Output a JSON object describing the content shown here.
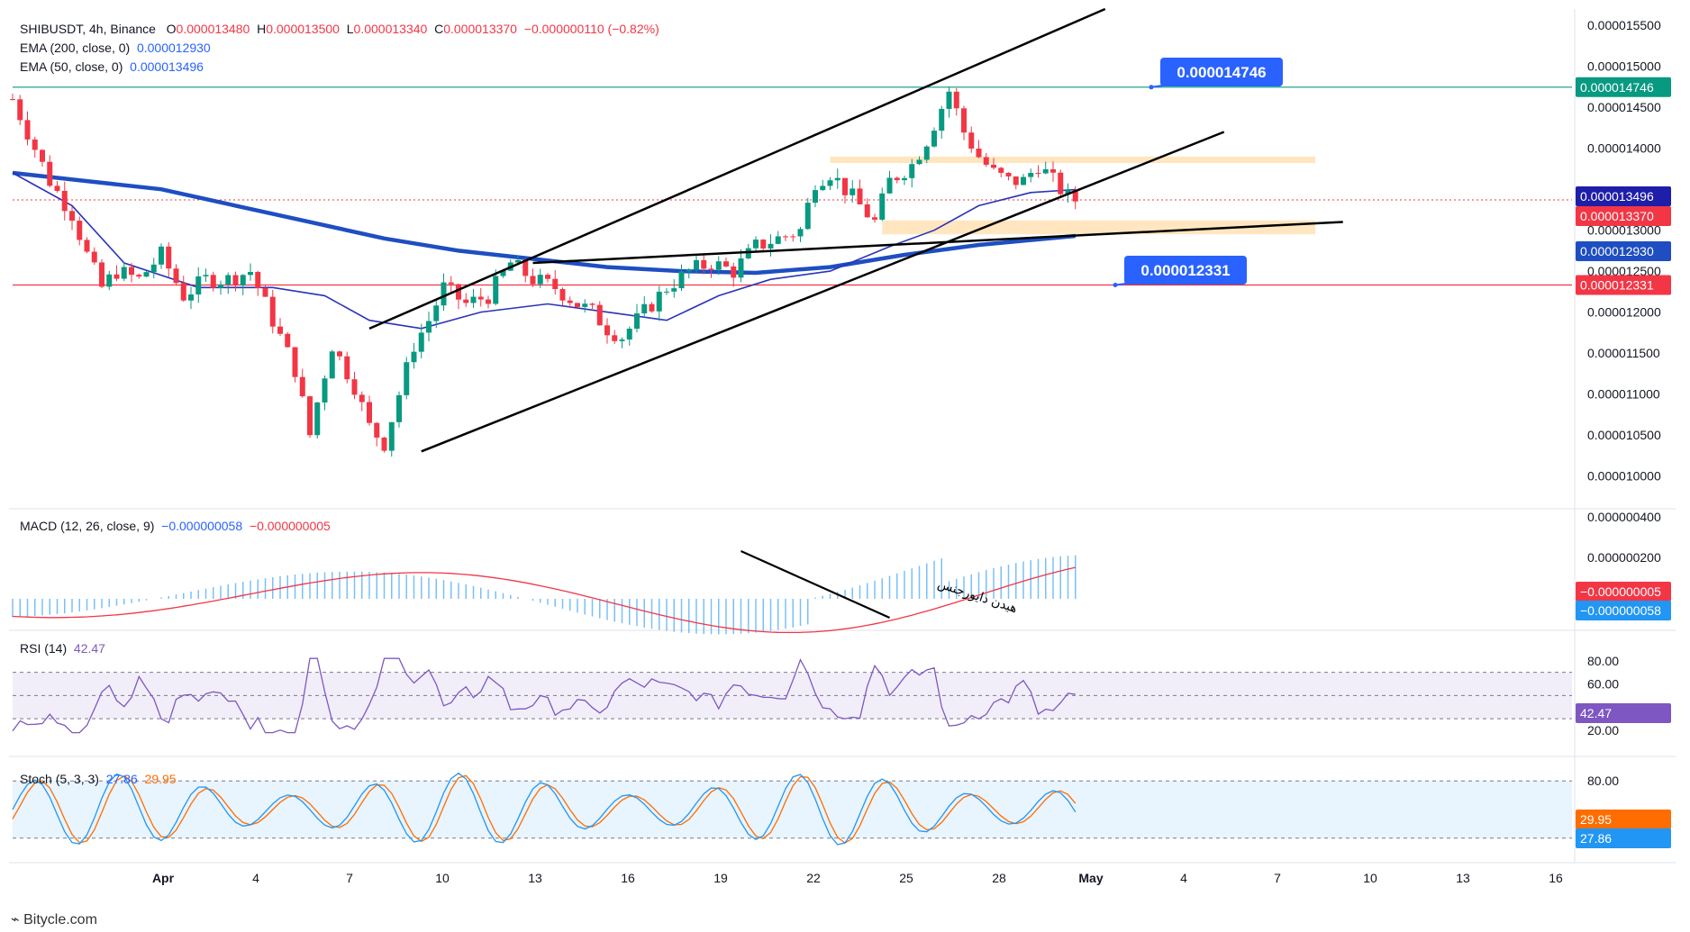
{
  "header": {
    "symbol": "SHIBUSDT, 4h, Binance",
    "o_label": "O",
    "o": "0.000013480",
    "h_label": "H",
    "h": "0.000013500",
    "l_label": "L",
    "l": "0.000013340",
    "c_label": "C",
    "c": "0.000013370",
    "change": "−0.000000110 (−0.82%)"
  },
  "ema200": {
    "label": "EMA (200, close, 0)",
    "value": "0.000012930"
  },
  "ema50": {
    "label": "EMA (50, close, 0)",
    "value": "0.000013496"
  },
  "macd": {
    "label": "MACD (12, 26, close, 9)",
    "v1": "−0.000000058",
    "v2": "−0.000000005",
    "annotation": "هیدن دایورجنس"
  },
  "rsi": {
    "label": "RSI (14)",
    "value": "42.47"
  },
  "stoch": {
    "label": "Stoch (5, 3, 3)",
    "k": "27.86",
    "d": "29.95"
  },
  "watermark": "Bitycle.com",
  "colors": {
    "blue": "#2962ff",
    "red": "#f23645",
    "green": "#089981",
    "purple": "#7e57c2",
    "orange": "#ff6d00",
    "ema200": "#1e4ec2",
    "ema50": "#2a33b8"
  },
  "chart_data": {
    "type": "candlestick",
    "title": "SHIBUSDT, 4h, Binance",
    "price_axis": {
      "ticks": [
        "0.000015500",
        "0.000015000",
        "0.000014500",
        "0.000014000",
        "0.000013000",
        "0.000012500",
        "0.000012000",
        "0.000011500",
        "0.000011000",
        "0.000010500",
        "0.000010000"
      ],
      "range": [
        9.6e-06,
        1.57e-05
      ]
    },
    "x_axis": {
      "ticks": [
        "Apr",
        "4",
        "7",
        "10",
        "13",
        "16",
        "19",
        "22",
        "25",
        "28",
        "May",
        "4",
        "7",
        "10",
        "13",
        "16"
      ]
    },
    "price_badges": [
      {
        "value": "0.000014746",
        "color": "#089981"
      },
      {
        "value": "0.000013496",
        "color": "#1e1ea8"
      },
      {
        "value": "0.000013370",
        "color": "#f23645"
      },
      {
        "value": "0.000012930",
        "color": "#1e4ec2"
      },
      {
        "value": "0.000012331",
        "color": "#f23645"
      }
    ],
    "callouts": [
      "0.000014746",
      "0.000012331"
    ],
    "horizontal_levels": [
      {
        "value": 1.4746e-05,
        "color": "green"
      },
      {
        "value": 1.2331e-05,
        "color": "red"
      }
    ],
    "support_zones": [
      {
        "from": 1.38e-05,
        "to": 1.39e-05
      },
      {
        "from": 1.29e-05,
        "to": 1.31e-05
      }
    ],
    "price_path": [
      [
        0,
        14.6
      ],
      [
        2,
        14.2
      ],
      [
        5,
        13.6
      ],
      [
        8,
        13.2
      ],
      [
        10,
        12.7
      ],
      [
        12,
        12.3
      ],
      [
        14,
        12.5
      ],
      [
        17,
        12.4
      ],
      [
        20,
        12.7
      ],
      [
        23,
        12.2
      ],
      [
        26,
        12.4
      ],
      [
        29,
        12.4
      ],
      [
        32,
        12.5
      ],
      [
        34,
        12.1
      ],
      [
        36,
        11.7
      ],
      [
        38,
        11.3
      ],
      [
        40,
        10.5
      ],
      [
        41,
        10.9
      ],
      [
        43,
        11.6
      ],
      [
        46,
        11.1
      ],
      [
        48,
        10.6
      ],
      [
        50,
        10.4
      ],
      [
        52,
        11.0
      ],
      [
        54,
        11.6
      ],
      [
        56,
        11.9
      ],
      [
        58,
        12.3
      ],
      [
        61,
        12.1
      ],
      [
        64,
        12.2
      ],
      [
        67,
        12.6
      ],
      [
        70,
        12.4
      ],
      [
        73,
        12.3
      ],
      [
        76,
        12.1
      ],
      [
        78,
        12.0
      ],
      [
        80,
        11.8
      ],
      [
        82,
        11.7
      ],
      [
        85,
        12.0
      ],
      [
        88,
        12.3
      ],
      [
        91,
        12.5
      ],
      [
        94,
        12.6
      ],
      [
        97,
        12.5
      ],
      [
        100,
        12.8
      ],
      [
        103,
        12.9
      ],
      [
        106,
        13.0
      ],
      [
        108,
        13.6
      ],
      [
        110,
        13.7
      ],
      [
        113,
        13.4
      ],
      [
        116,
        13.1
      ],
      [
        118,
        13.6
      ],
      [
        121,
        13.8
      ],
      [
        123,
        14.1
      ],
      [
        125,
        14.5
      ],
      [
        126,
        14.7
      ],
      [
        128,
        14.2
      ],
      [
        130,
        13.9
      ],
      [
        132,
        13.7
      ],
      [
        134,
        13.6
      ],
      [
        136,
        13.6
      ],
      [
        138,
        13.8
      ],
      [
        140,
        13.6
      ],
      [
        142,
        13.4
      ],
      [
        143,
        13.37
      ]
    ],
    "ema50_path": [
      [
        0,
        13.7
      ],
      [
        8,
        13.3
      ],
      [
        15,
        12.6
      ],
      [
        25,
        12.3
      ],
      [
        35,
        12.3
      ],
      [
        42,
        12.2
      ],
      [
        48,
        11.9
      ],
      [
        55,
        11.8
      ],
      [
        63,
        12.0
      ],
      [
        72,
        12.1
      ],
      [
        80,
        12.0
      ],
      [
        88,
        11.9
      ],
      [
        95,
        12.2
      ],
      [
        102,
        12.4
      ],
      [
        110,
        12.5
      ],
      [
        118,
        12.8
      ],
      [
        124,
        13.0
      ],
      [
        130,
        13.3
      ],
      [
        137,
        13.46
      ],
      [
        143,
        13.496
      ]
    ],
    "ema200_path": [
      [
        0,
        13.7
      ],
      [
        10,
        13.6
      ],
      [
        20,
        13.5
      ],
      [
        30,
        13.3
      ],
      [
        40,
        13.1
      ],
      [
        50,
        12.9
      ],
      [
        60,
        12.75
      ],
      [
        70,
        12.65
      ],
      [
        80,
        12.55
      ],
      [
        90,
        12.5
      ],
      [
        100,
        12.48
      ],
      [
        110,
        12.55
      ],
      [
        120,
        12.7
      ],
      [
        130,
        12.82
      ],
      [
        143,
        12.93
      ]
    ],
    "trendlines": [
      {
        "points": [
          [
            48,
            11.8
          ],
          [
            147,
            15.7
          ]
        ]
      },
      {
        "points": [
          [
            55,
            10.3
          ],
          [
            163,
            14.2
          ]
        ]
      },
      {
        "points": [
          [
            70,
            12.6
          ],
          [
            179,
            13.1
          ]
        ]
      }
    ],
    "macd": {
      "ticks": [
        "0.000000400",
        "0.000000200"
      ],
      "badges": [
        "−0.000000005",
        "−0.000000058"
      ]
    },
    "rsi": {
      "ticks": [
        "80.00",
        "60.00",
        "20.00"
      ],
      "levels": [
        70,
        30
      ],
      "value": 42.47
    },
    "stoch": {
      "ticks": [
        "80.00"
      ],
      "levels": [
        80,
        20
      ],
      "k": 27.86,
      "d": 29.95
    }
  }
}
